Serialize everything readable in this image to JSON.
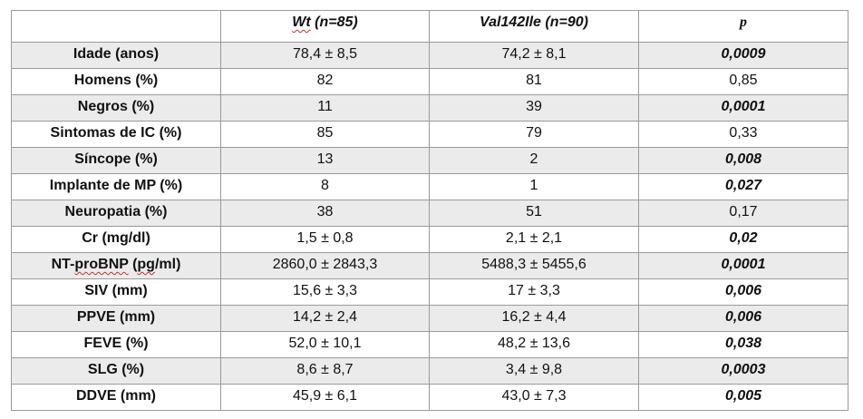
{
  "table": {
    "header": {
      "blank": "",
      "col_wt_name": "Wt",
      "col_wt_suffix": " (n=85)",
      "col_val": "Val142Ile (n=90)",
      "col_p": "p"
    },
    "rows": [
      {
        "label": "Idade (anos)",
        "wt": "78,4 ± 8,5",
        "val": "74,2 ± 8,1",
        "p": "0,0009",
        "significant": true
      },
      {
        "label": "Homens (%)",
        "wt": "82",
        "val": "81",
        "p": "0,85",
        "significant": false
      },
      {
        "label": "Negros (%)",
        "wt": "11",
        "val": "39",
        "p": "0,0001",
        "significant": true
      },
      {
        "label": "Sintomas de IC (%)",
        "wt": "85",
        "val": "79",
        "p": "0,33",
        "significant": false
      },
      {
        "label": "Síncope (%)",
        "wt": "13",
        "val": "2",
        "p": "0,008",
        "significant": true
      },
      {
        "label": "Implante de MP (%)",
        "wt": "8",
        "val": "1",
        "p": "0,027",
        "significant": true
      },
      {
        "label": "Neuropatia (%)",
        "wt": "38",
        "val": "51",
        "p": "0,17",
        "significant": false
      },
      {
        "label": "Cr (mg/dl)",
        "wt": "1,5 ± 0,8",
        "val": "2,1 ± 2,1",
        "p": "0,02",
        "significant": true
      },
      {
        "label_a": "NT-",
        "label_b": "proBNP",
        "label_c": " (",
        "label_d": "pg",
        "label_e": "/ml)",
        "wt": "2860,0 ± 2843,3",
        "val": "5488,3 ± 5455,6",
        "p": "0,0001",
        "significant": true
      },
      {
        "label": "SIV (mm)",
        "wt": "15,6 ± 3,3",
        "val": "17 ± 3,3",
        "p": "0,006",
        "significant": true
      },
      {
        "label": "PPVE (mm)",
        "wt": "14,2 ± 2,4",
        "val": "16,2 ± 4,4",
        "p": "0,006",
        "significant": true
      },
      {
        "label": "FEVE (%)",
        "wt": "52,0 ± 10,1",
        "val": "48,2 ± 13,6",
        "p": "0,038",
        "significant": true
      },
      {
        "label": "SLG (%)",
        "wt": "8,6 ± 8,7",
        "val": "3,4 ± 9,8",
        "p": "0,0003",
        "significant": true
      },
      {
        "label": "DDVE (mm)",
        "wt": "45,9 ± 6,1",
        "val": "43,0 ± 7,3",
        "p": "0,005",
        "significant": true
      }
    ]
  }
}
